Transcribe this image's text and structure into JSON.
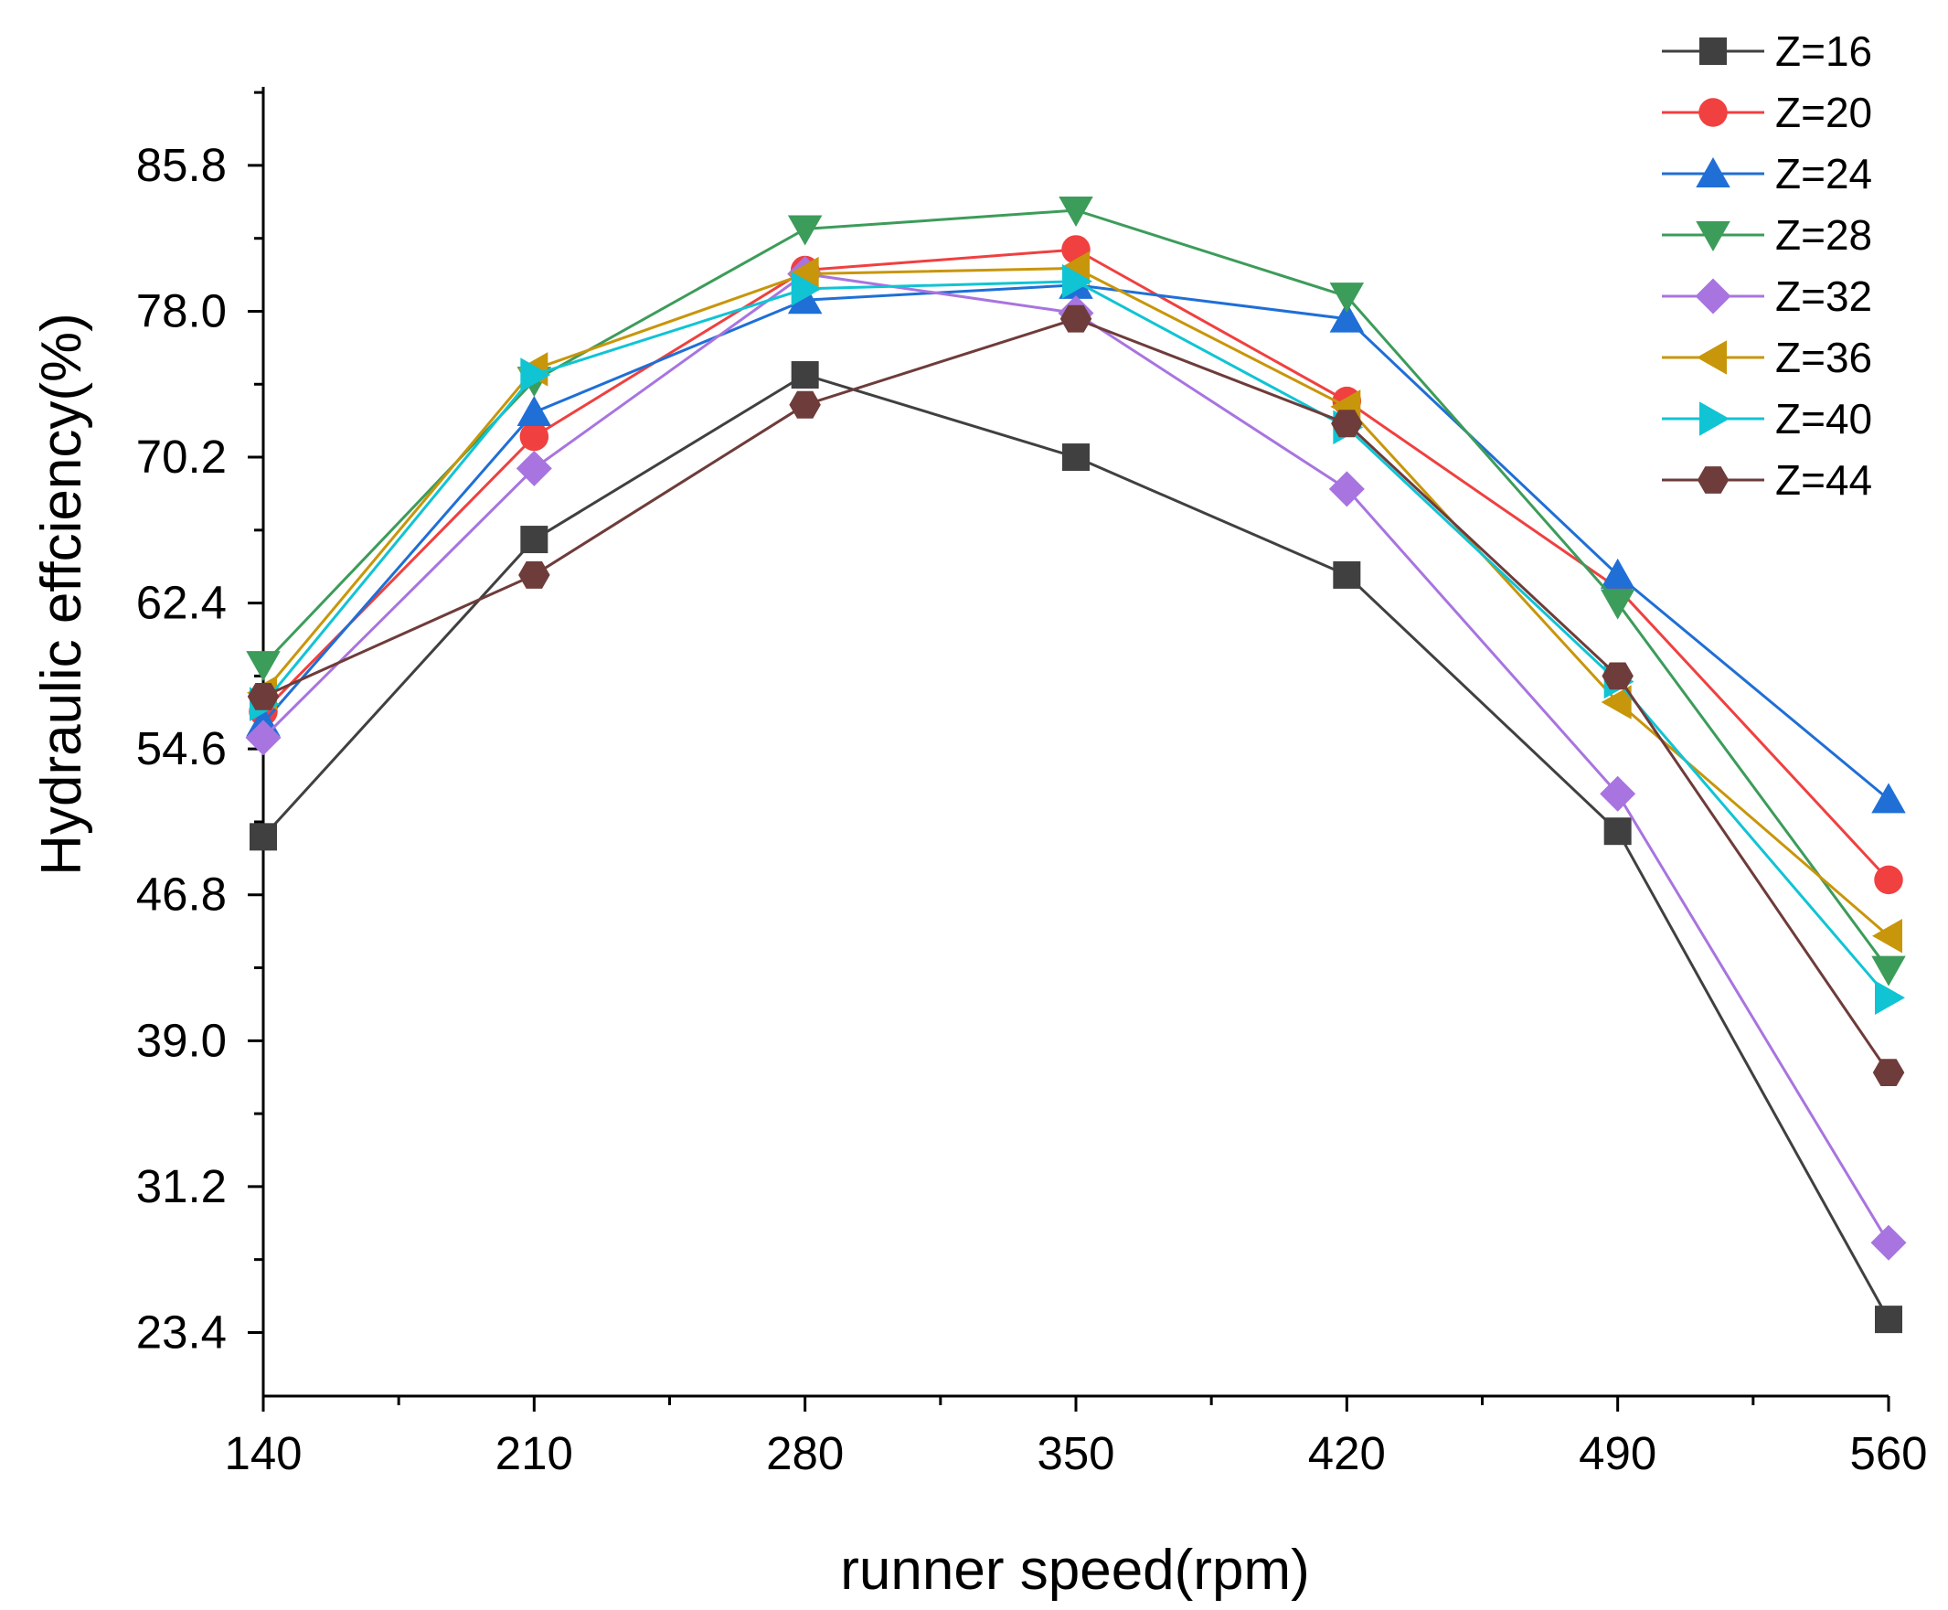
{
  "chart_data": {
    "type": "line",
    "title": "",
    "xlabel": "runner speed(rpm)",
    "ylabel": "Hydraulic effciency(%)",
    "x": [
      140,
      210,
      280,
      350,
      420,
      490,
      560
    ],
    "xlim": [
      140,
      560
    ],
    "ylim": [
      20,
      90
    ],
    "x_ticks": [
      "140",
      "210",
      "280",
      "350",
      "420",
      "490",
      "560"
    ],
    "y_ticks": [
      "23.4",
      "31.2",
      "39.0",
      "46.8",
      "54.6",
      "62.4",
      "70.2",
      "78.0",
      "85.8"
    ],
    "grid": false,
    "legend_position": "top-right",
    "series": [
      {
        "name": "Z=16",
        "color": "#404040",
        "marker": "square",
        "values": [
          49.9,
          65.8,
          74.6,
          70.2,
          63.9,
          50.2,
          24.1
        ]
      },
      {
        "name": "Z=20",
        "color": "#f04040",
        "marker": "circle",
        "values": [
          56.6,
          71.3,
          80.2,
          81.3,
          73.2,
          63.2,
          47.6
        ]
      },
      {
        "name": "Z=24",
        "color": "#1f6fd6",
        "marker": "triangle-up",
        "values": [
          56.0,
          72.6,
          78.6,
          79.4,
          77.6,
          63.9,
          51.9
        ]
      },
      {
        "name": "Z=28",
        "color": "#3c9c5a",
        "marker": "triangle-down",
        "values": [
          59.1,
          74.3,
          82.4,
          83.4,
          78.8,
          62.4,
          42.8
        ]
      },
      {
        "name": "Z=32",
        "color": "#a874e0",
        "marker": "diamond",
        "values": [
          55.2,
          69.6,
          80.0,
          77.9,
          68.5,
          52.2,
          28.2
        ]
      },
      {
        "name": "Z=36",
        "color": "#c8960a",
        "marker": "triangle-left",
        "values": [
          57.6,
          74.9,
          80.0,
          80.3,
          72.9,
          57.1,
          44.6
        ]
      },
      {
        "name": "Z=40",
        "color": "#10c4d4",
        "marker": "triangle-right",
        "values": [
          57.0,
          74.6,
          79.2,
          79.6,
          71.8,
          58.2,
          41.3
        ]
      },
      {
        "name": "Z=44",
        "color": "#6e3c3a",
        "marker": "hexagon",
        "values": [
          57.4,
          63.9,
          73.0,
          77.6,
          72.0,
          58.5,
          37.3
        ]
      }
    ]
  }
}
